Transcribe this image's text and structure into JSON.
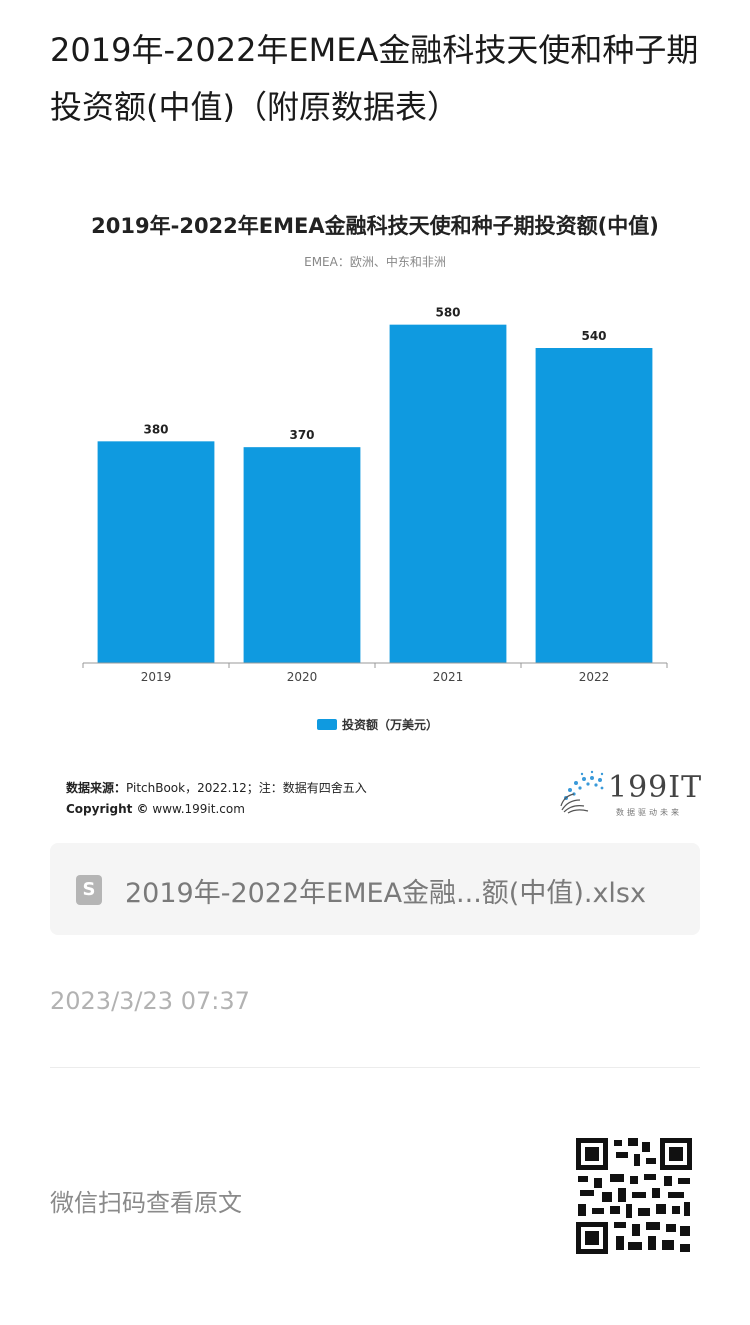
{
  "page": {
    "title": "2019年-2022年EMEA金融科技天使和种子期投资额(中值)（附原数据表）"
  },
  "chart": {
    "title": "2019年-2022年EMEA金融科技天使和种子期投资额(中值)",
    "subtitle": "EMEA：欧洲、中东和非洲",
    "legend_label": "投资额（万美元）",
    "source_label": "数据来源：",
    "source_text": "PitchBook，2022.12；注：数据有四舍五入",
    "copyright_label": "Copyright ©",
    "copyright_text": "www.199it.com"
  },
  "chart_data": {
    "type": "bar",
    "title": "2019年-2022年EMEA金融科技天使和种子期投资额(中值)",
    "subtitle": "EMEA：欧洲、中东和非洲",
    "categories": [
      "2019",
      "2020",
      "2021",
      "2022"
    ],
    "series": [
      {
        "name": "投资额（万美元）",
        "values": [
          380,
          370,
          580,
          540
        ]
      }
    ],
    "ylim": [
      0,
      600
    ],
    "grid": false,
    "legend_position": "bottom",
    "bar_color": "#0f9ae0"
  },
  "brand": {
    "name": "199IT",
    "tagline": "数据驱动未来"
  },
  "attachment": {
    "file_name": "2019年-2022年EMEA金融...额(中值).xlsx",
    "icon": "spreadsheet-file-icon",
    "icon_glyph": "S"
  },
  "meta": {
    "timestamp": "2023/3/23 07:37"
  },
  "footer": {
    "scan_text": "微信扫码查看原文",
    "qr_icon": "qr-code-icon"
  },
  "colors": {
    "bar": "#0f9ae0",
    "axis": "#999999",
    "file_card_bg": "#f5f5f5"
  }
}
